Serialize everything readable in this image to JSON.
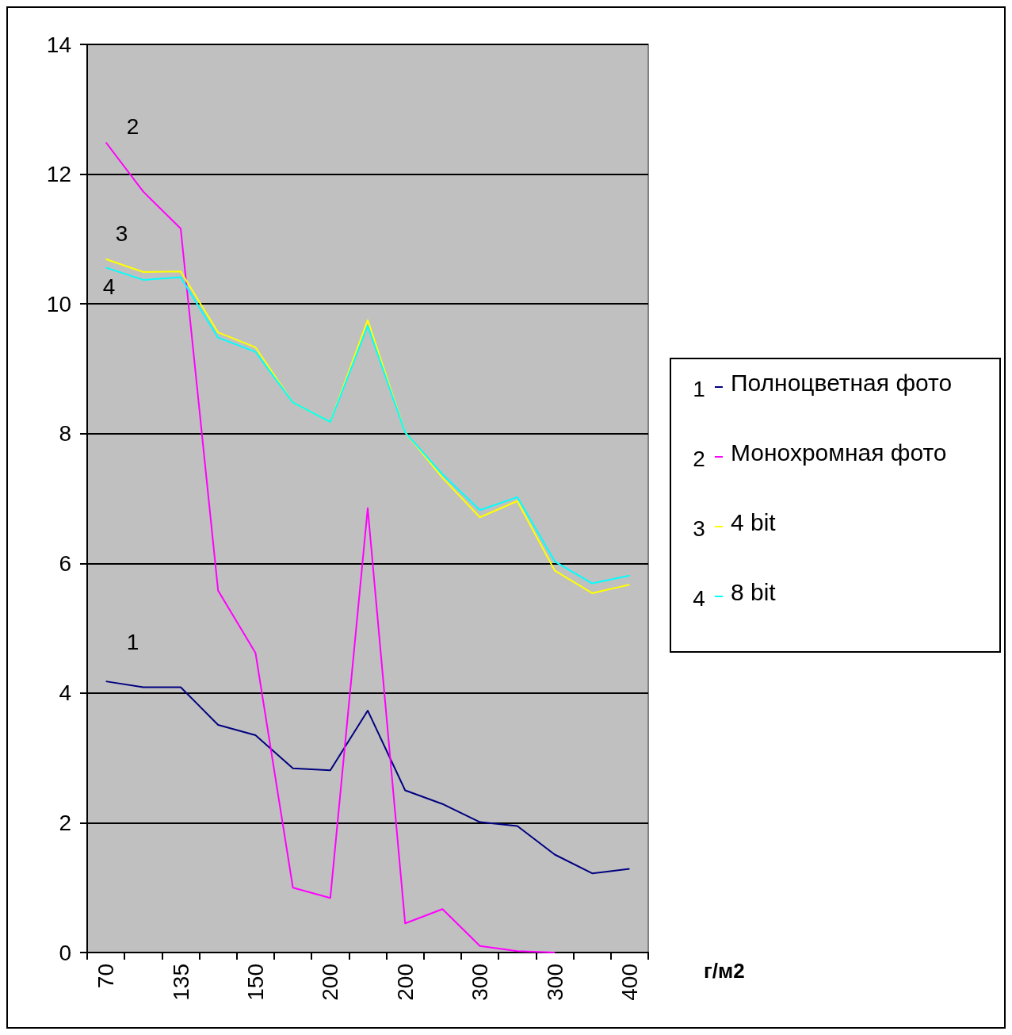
{
  "chart_data": {
    "type": "line",
    "xlabel": "г/м2",
    "categories": [
      "70",
      null,
      "135",
      null,
      "150",
      null,
      "200",
      null,
      "200",
      null,
      "300",
      null,
      "300",
      null,
      "400"
    ],
    "series": [
      {
        "name": "Полноцветная фото",
        "color": "#000080",
        "values": [
          4.18,
          4.09,
          4.09,
          3.51,
          3.35,
          2.84,
          2.81,
          3.73,
          2.5,
          2.29,
          2.01,
          1.95,
          1.51,
          1.22,
          1.29
        ]
      },
      {
        "name": "Монохромная фото",
        "color": "#ff00ff",
        "values": [
          12.49,
          11.73,
          11.16,
          5.58,
          4.62,
          1.0,
          0.84,
          6.85,
          0.45,
          0.67,
          0.1,
          0.02,
          0,
          null,
          null
        ]
      },
      {
        "name": "4 bit",
        "color": "#ffff00",
        "values": [
          10.69,
          10.49,
          10.5,
          9.56,
          9.33,
          8.48,
          8.18,
          9.75,
          8.02,
          7.32,
          6.71,
          6.96,
          5.89,
          5.54,
          5.67
        ]
      },
      {
        "name": "8 bit",
        "color": "#00ffff",
        "values": [
          10.56,
          10.37,
          10.41,
          9.48,
          9.26,
          8.48,
          8.18,
          9.66,
          8.02,
          7.37,
          6.82,
          7.02,
          6.03,
          5.69,
          5.81
        ]
      }
    ],
    "annotations": [
      "1",
      "2",
      "3",
      "4"
    ],
    "ylim": [
      0,
      14
    ],
    "yticks": [
      0,
      2,
      4,
      6,
      8,
      10,
      12,
      14
    ],
    "grid": "y",
    "legend": "right",
    "marker": "none",
    "line_style": "solid"
  }
}
